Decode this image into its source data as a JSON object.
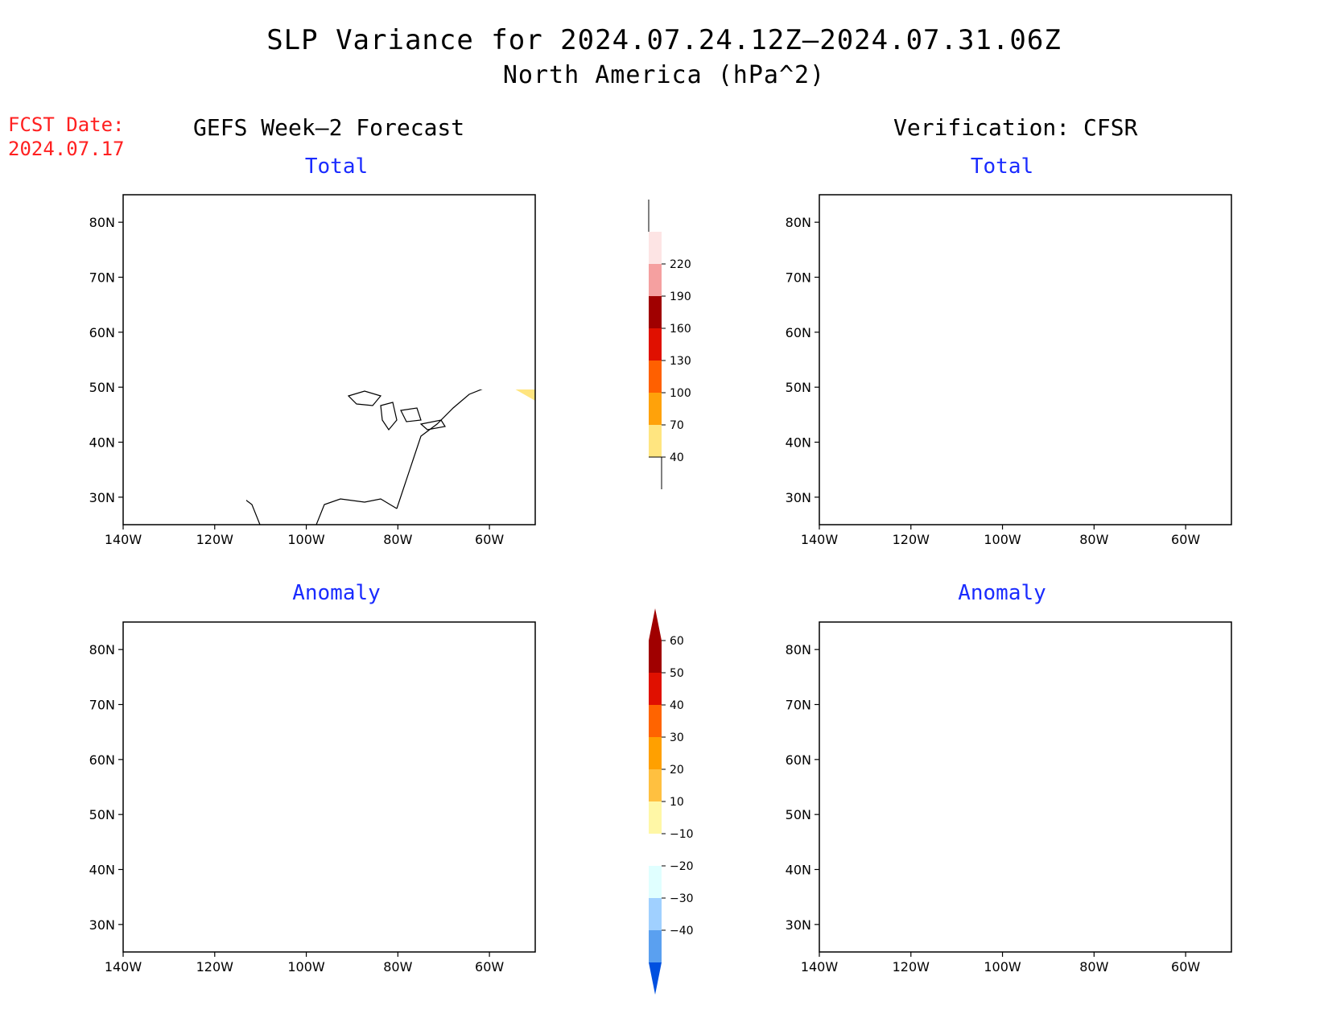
{
  "title": "SLP Variance for 2024.07.24.12Z—2024.07.31.06Z",
  "subtitle": "North America (hPa^2)",
  "fcst_label": "FCST Date:",
  "fcst_date": "2024.07.17",
  "left_column_title": "GEFS Week—2 Forecast",
  "right_column_title": "Verification: CFSR",
  "panels": [
    {
      "id": "fc-total",
      "title": "Total"
    },
    {
      "id": "ver-total",
      "title": "Total"
    },
    {
      "id": "fc-anom",
      "title": "Anomaly"
    },
    {
      "id": "ver-anom",
      "title": "Anomaly"
    }
  ],
  "map_axes": {
    "lat_labels": [
      "80N",
      "70N",
      "60N",
      "50N",
      "40N",
      "30N"
    ],
    "lon_labels": [
      "140W",
      "120W",
      "100W",
      "80W",
      "60W"
    ],
    "lat_range": [
      25,
      85
    ],
    "lon_range": [
      -140,
      -50
    ]
  },
  "colors": {
    "title_blue": "#1a2bff",
    "fcst_red": "#ff2020",
    "total_scale": [
      "#ffe580",
      "#ffa20a",
      "#ff6000",
      "#e01000",
      "#a00000",
      "#f5a0a0",
      "#fde4e4"
    ],
    "anomaly_scale_pos": [
      "#fff7a6",
      "#ffc040",
      "#ffa000",
      "#ff6400",
      "#e01000",
      "#a00000"
    ],
    "anomaly_scale_neg": [
      "#e0ffff",
      "#a0d0ff",
      "#5aa0f0",
      "#1e78f0",
      "#0050e0"
    ]
  },
  "total_colorbar": {
    "labels": [
      "40",
      "70",
      "100",
      "130",
      "160",
      "190",
      "220"
    ]
  },
  "anomaly_colorbar": {
    "labels": [
      "60",
      "50",
      "40",
      "30",
      "20",
      "10",
      "−10",
      "−20",
      "−30",
      "−40"
    ]
  }
}
